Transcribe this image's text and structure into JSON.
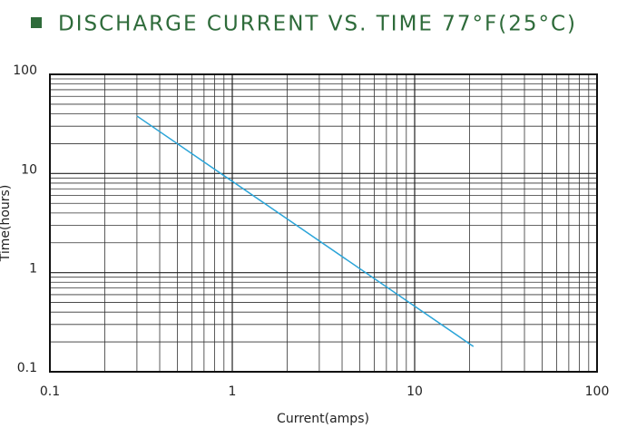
{
  "chart_data": {
    "type": "line",
    "title": "DISCHARGE CURRENT VS. TIME 77°F(25°C)",
    "x_label": "Current(amps)",
    "y_label": "Time(hours)",
    "x": [
      0.3,
      21
    ],
    "series": [
      {
        "color": "#2aa4d8",
        "values": [
          38,
          0.18
        ]
      }
    ],
    "xlim": [
      0.1,
      100
    ],
    "ylim": [
      0.1,
      100
    ],
    "xticks": [
      0.1,
      1,
      10,
      100
    ],
    "yticks": [
      0.1,
      1,
      10,
      100
    ],
    "xscale": "log",
    "yscale": "log",
    "grid": true,
    "minor_grid": true
  }
}
